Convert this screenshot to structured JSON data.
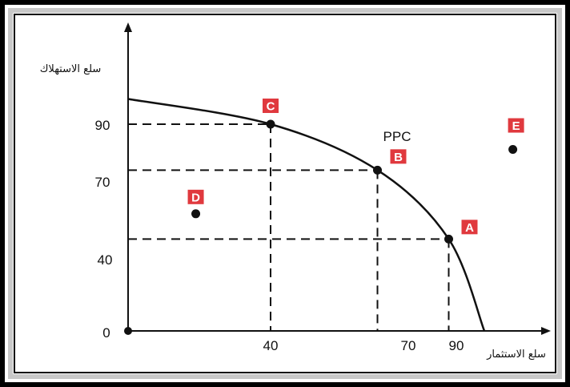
{
  "chart_data": {
    "type": "line",
    "xlabel": "سلع الاستثمار",
    "ylabel": "سلع الاستهلاك",
    "origin_label": "0",
    "x_ticks": [
      "40",
      "70",
      "90"
    ],
    "y_ticks": [
      "90",
      "70",
      "40"
    ],
    "curve_label": "PPC",
    "series": [
      {
        "name": "PPC",
        "x": [
          0,
          40,
          70,
          90,
          100
        ],
        "y": [
          101,
          90,
          70,
          40,
          0
        ]
      }
    ],
    "points": [
      {
        "label": "A",
        "x": 90,
        "y": 40
      },
      {
        "label": "B",
        "x": 70,
        "y": 70
      },
      {
        "label": "C",
        "x": 40,
        "y": 90
      },
      {
        "label": "D",
        "x": 19,
        "y": 51
      },
      {
        "label": "E",
        "x": 108,
        "y": 79
      }
    ],
    "origin_point": {
      "x": 0,
      "y": 0
    },
    "xlim": [
      0,
      118
    ],
    "ylim": [
      0,
      116
    ],
    "grid": false,
    "colors": {
      "badge": "#e0393e",
      "line": "#111111",
      "frame": "#000000",
      "frame_inner": "#c8c8c8"
    }
  }
}
